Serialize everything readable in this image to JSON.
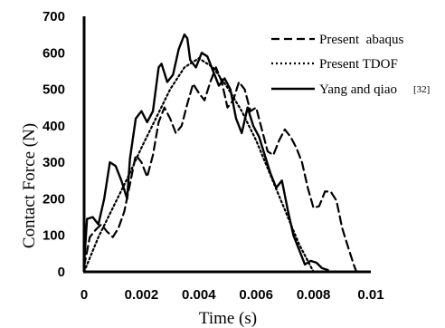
{
  "chart_data": {
    "type": "line",
    "xlabel": "Time (s)",
    "ylabel": "Contact Force (N)",
    "xlim": [
      0,
      0.01
    ],
    "ylim": [
      0,
      700
    ],
    "xticks": [
      "0",
      "0.002",
      "0.004",
      "0.006",
      "0.008",
      "0.01"
    ],
    "yticks": [
      "0",
      "100",
      "200",
      "300",
      "400",
      "500",
      "600",
      "700"
    ],
    "grid": false,
    "legend_position": "top-right",
    "series": [
      {
        "name": "Present  abaqus",
        "style": "dashed",
        "color": "#000000",
        "x": [
          0,
          0.0002,
          0.0004,
          0.0006,
          0.0008,
          0.001,
          0.0012,
          0.0014,
          0.0016,
          0.0018,
          0.002,
          0.0022,
          0.0024,
          0.0026,
          0.0028,
          0.003,
          0.0032,
          0.0034,
          0.0036,
          0.0038,
          0.004,
          0.0042,
          0.0044,
          0.0046,
          0.0048,
          0.005,
          0.0052,
          0.0054,
          0.0056,
          0.0058,
          0.006,
          0.0062,
          0.0064,
          0.0066,
          0.0068,
          0.007,
          0.0072,
          0.0074,
          0.0076,
          0.0078,
          0.008,
          0.0082,
          0.0084,
          0.0086,
          0.0088,
          0.009,
          0.0092,
          0.0094,
          0.0095
        ],
        "values": [
          15,
          95,
          115,
          130,
          110,
          95,
          120,
          165,
          240,
          320,
          300,
          260,
          320,
          410,
          450,
          420,
          380,
          400,
          460,
          515,
          490,
          470,
          520,
          560,
          520,
          450,
          470,
          520,
          500,
          440,
          450,
          390,
          330,
          320,
          360,
          390,
          370,
          340,
          300,
          230,
          175,
          180,
          220,
          220,
          195,
          120,
          70,
          20,
          0
        ]
      },
      {
        "name": "Present TDOF",
        "style": "dotted",
        "color": "#000000",
        "x": [
          0,
          0.0005,
          0.001,
          0.0015,
          0.002,
          0.0025,
          0.003,
          0.0035,
          0.004,
          0.0045,
          0.005,
          0.0055,
          0.006,
          0.0065,
          0.007,
          0.0075,
          0.008
        ],
        "values": [
          0,
          95,
          175,
          255,
          340,
          420,
          500,
          560,
          585,
          560,
          505,
          440,
          360,
          265,
          170,
          75,
          0
        ]
      },
      {
        "name": "Yang and qiao",
        "style": "solid",
        "color": "#000000",
        "x": [
          0,
          0.0001,
          0.0003,
          0.0005,
          0.0007,
          0.0009,
          0.0011,
          0.0013,
          0.0015,
          0.0016,
          0.0018,
          0.002,
          0.0022,
          0.0024,
          0.0026,
          0.0027,
          0.0029,
          0.0031,
          0.0033,
          0.0035,
          0.0036,
          0.0037,
          0.0039,
          0.0041,
          0.0043,
          0.0045,
          0.0047,
          0.0049,
          0.0051,
          0.0053,
          0.0055,
          0.0057,
          0.0059,
          0.0061,
          0.0063,
          0.0065,
          0.0067,
          0.0069,
          0.0071,
          0.0073,
          0.0075,
          0.0077,
          0.0079,
          0.0081,
          0.0083,
          0.0085
        ],
        "values": [
          20,
          145,
          150,
          130,
          200,
          300,
          290,
          250,
          200,
          310,
          420,
          440,
          410,
          440,
          560,
          570,
          520,
          540,
          610,
          650,
          640,
          580,
          560,
          600,
          590,
          550,
          510,
          530,
          500,
          420,
          380,
          450,
          400,
          370,
          320,
          270,
          230,
          250,
          170,
          100,
          60,
          20,
          30,
          25,
          10,
          5
        ]
      }
    ],
    "legend_reference": "[32]"
  }
}
